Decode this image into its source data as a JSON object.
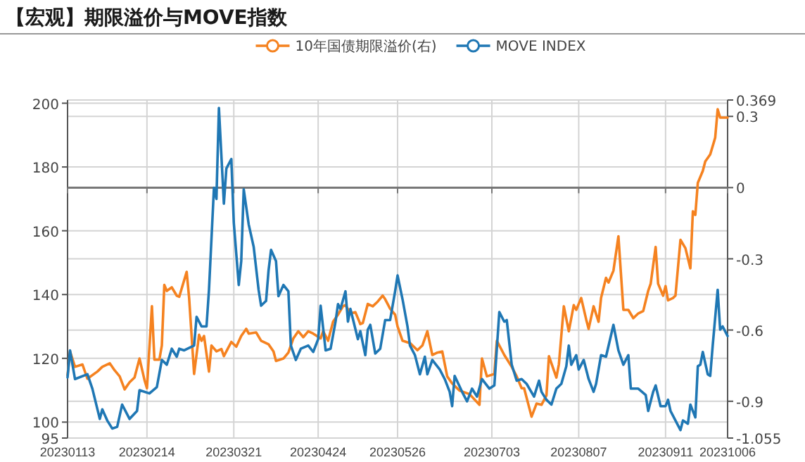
{
  "chart_data": {
    "type": "line",
    "title": "【宏观】期限溢价与MOVE指数",
    "xlim": [
      "2023-01-13",
      "2023-10-06"
    ],
    "xticks": [
      {
        "value": "2023-01-13",
        "label": "20230113"
      },
      {
        "value": "2023-02-14",
        "label": "20230214"
      },
      {
        "value": "2023-03-21",
        "label": "20230321"
      },
      {
        "value": "2023-04-24",
        "label": "20230424"
      },
      {
        "value": "2023-05-26",
        "label": "20230526"
      },
      {
        "value": "2023-07-03",
        "label": "20230703"
      },
      {
        "value": "2023-08-07",
        "label": "20230807"
      },
      {
        "value": "2023-09-11",
        "label": "20230911"
      },
      {
        "value": "2023-10-06",
        "label": "20231006"
      }
    ],
    "ylim": [
      95,
      201
    ],
    "yticks": [
      95,
      100,
      120,
      140,
      160,
      180,
      200
    ],
    "y2lim": [
      -1.055,
      0.369
    ],
    "y2ticks": [
      -1.055,
      -0.9,
      -0.6,
      -0.3,
      0,
      0.3,
      0.369
    ],
    "grid": true,
    "legend": "top",
    "series": [
      {
        "name": "10年国债期限溢价(右)",
        "color": "#f58220",
        "axis": "y2",
        "x": [
          "2023-01-13",
          "2023-01-14",
          "2023-01-16",
          "2023-01-19",
          "2023-01-21",
          "2023-01-25",
          "2023-01-27",
          "2023-01-30",
          "2023-02-01",
          "2023-02-03",
          "2023-02-05",
          "2023-02-07",
          "2023-02-09",
          "2023-02-11",
          "2023-02-13",
          "2023-02-14",
          "2023-02-16",
          "2023-02-17",
          "2023-02-19",
          "2023-02-20",
          "2023-02-21",
          "2023-02-22",
          "2023-02-24",
          "2023-02-26",
          "2023-02-27",
          "2023-03-02",
          "2023-03-03",
          "2023-03-05",
          "2023-03-07",
          "2023-03-08",
          "2023-03-09",
          "2023-03-11",
          "2023-03-12",
          "2023-03-14",
          "2023-03-16",
          "2023-03-17",
          "2023-03-20",
          "2023-03-22",
          "2023-03-24",
          "2023-03-26",
          "2023-03-27",
          "2023-03-30",
          "2023-04-01",
          "2023-04-04",
          "2023-04-06",
          "2023-04-07",
          "2023-04-10",
          "2023-04-12",
          "2023-04-14",
          "2023-04-16",
          "2023-04-18",
          "2023-04-20",
          "2023-04-22",
          "2023-04-25",
          "2023-04-26",
          "2023-04-28",
          "2023-04-30",
          "2023-05-02",
          "2023-05-04",
          "2023-05-05",
          "2023-05-07",
          "2023-05-09",
          "2023-05-11",
          "2023-05-12",
          "2023-05-14",
          "2023-05-16",
          "2023-05-18",
          "2023-05-20",
          "2023-05-21",
          "2023-05-23",
          "2023-05-25",
          "2023-05-26",
          "2023-05-28",
          "2023-05-31",
          "2023-06-03",
          "2023-06-05",
          "2023-06-07",
          "2023-06-09",
          "2023-06-11",
          "2023-06-13",
          "2023-06-15",
          "2023-06-17",
          "2023-06-20",
          "2023-06-24",
          "2023-06-28",
          "2023-06-29",
          "2023-07-01",
          "2023-07-04",
          "2023-07-05",
          "2023-07-08",
          "2023-07-11",
          "2023-07-13",
          "2023-07-15",
          "2023-07-16",
          "2023-07-19",
          "2023-07-21",
          "2023-07-23",
          "2023-07-25",
          "2023-07-26",
          "2023-07-29",
          "2023-07-30",
          "2023-08-01",
          "2023-08-03",
          "2023-08-05",
          "2023-08-06",
          "2023-08-08",
          "2023-08-10",
          "2023-08-11",
          "2023-08-13",
          "2023-08-15",
          "2023-08-16",
          "2023-08-18",
          "2023-08-19",
          "2023-08-21",
          "2023-08-23",
          "2023-08-25",
          "2023-08-27",
          "2023-08-29",
          "2023-08-31",
          "2023-09-02",
          "2023-09-04",
          "2023-09-05",
          "2023-09-07",
          "2023-09-08",
          "2023-09-10",
          "2023-09-11",
          "2023-09-12",
          "2023-09-14",
          "2023-09-15",
          "2023-09-17",
          "2023-09-19",
          "2023-09-21",
          "2023-09-22",
          "2023-09-23",
          "2023-09-24",
          "2023-09-26",
          "2023-09-27",
          "2023-09-29",
          "2023-10-01",
          "2023-10-02",
          "2023-10-03",
          "2023-10-06"
        ],
        "values": [
          -0.79,
          -0.69,
          -0.755,
          -0.745,
          -0.805,
          -0.775,
          -0.755,
          -0.74,
          -0.77,
          -0.795,
          -0.85,
          -0.82,
          -0.8,
          -0.72,
          -0.81,
          -0.845,
          -0.5,
          -0.725,
          -0.725,
          -0.665,
          -0.41,
          -0.435,
          -0.42,
          -0.455,
          -0.46,
          -0.355,
          -0.465,
          -0.785,
          -0.62,
          -0.645,
          -0.625,
          -0.775,
          -0.665,
          -0.69,
          -0.68,
          -0.71,
          -0.65,
          -0.67,
          -0.625,
          -0.595,
          -0.615,
          -0.61,
          -0.645,
          -0.66,
          -0.69,
          -0.73,
          -0.72,
          -0.695,
          -0.635,
          -0.605,
          -0.63,
          -0.605,
          -0.615,
          -0.635,
          -0.605,
          -0.645,
          -0.565,
          -0.535,
          -0.5,
          -0.495,
          -0.53,
          -0.525,
          -0.575,
          -0.57,
          -0.49,
          -0.5,
          -0.48,
          -0.455,
          -0.47,
          -0.51,
          -0.535,
          -0.585,
          -0.645,
          -0.655,
          -0.685,
          -0.665,
          -0.605,
          -0.705,
          -0.695,
          -0.69,
          -0.795,
          -0.825,
          -0.855,
          -0.87,
          -0.915,
          -0.72,
          -0.795,
          -0.785,
          -0.645,
          -0.705,
          -0.755,
          -0.795,
          -0.845,
          -0.845,
          -0.965,
          -0.91,
          -0.915,
          -0.875,
          -0.71,
          -0.8,
          -0.745,
          -0.5,
          -0.605,
          -0.495,
          -0.515,
          -0.465,
          -0.555,
          -0.595,
          -0.5,
          -0.565,
          -0.465,
          -0.38,
          -0.4,
          -0.35,
          -0.205,
          -0.515,
          -0.515,
          -0.55,
          -0.53,
          -0.52,
          -0.435,
          -0.405,
          -0.25,
          -0.405,
          -0.455,
          -0.415,
          -0.475,
          -0.465,
          -0.455,
          -0.22,
          -0.255,
          -0.34,
          -0.1,
          -0.115,
          0.02,
          0.07,
          0.11,
          0.14,
          0.21,
          0.33,
          0.295,
          0.295
        ]
      },
      {
        "name": "MOVE INDEX",
        "color": "#1f77b4",
        "x": [
          "2023-01-13",
          "2023-01-14",
          "2023-01-16",
          "2023-01-21",
          "2023-01-23",
          "2023-01-26",
          "2023-01-27",
          "2023-01-29",
          "2023-01-31",
          "2023-02-02",
          "2023-02-04",
          "2023-02-07",
          "2023-02-10",
          "2023-02-11",
          "2023-02-15",
          "2023-02-18",
          "2023-02-20",
          "2023-02-22",
          "2023-02-24",
          "2023-02-26",
          "2023-02-27",
          "2023-03-01",
          "2023-03-05",
          "2023-03-06",
          "2023-03-08",
          "2023-03-10",
          "2023-03-11",
          "2023-03-13",
          "2023-03-14",
          "2023-03-15",
          "2023-03-17",
          "2023-03-18",
          "2023-03-20",
          "2023-03-21",
          "2023-03-23",
          "2023-03-24",
          "2023-03-25",
          "2023-03-27",
          "2023-03-29",
          "2023-03-31",
          "2023-04-01",
          "2023-04-03",
          "2023-04-04",
          "2023-04-05",
          "2023-04-07",
          "2023-04-08",
          "2023-04-10",
          "2023-04-12",
          "2023-04-13",
          "2023-04-15",
          "2023-04-17",
          "2023-04-20",
          "2023-04-22",
          "2023-04-24",
          "2023-04-25",
          "2023-04-27",
          "2023-04-29",
          "2023-05-01",
          "2023-05-02",
          "2023-05-03",
          "2023-05-05",
          "2023-05-06",
          "2023-05-07",
          "2023-05-10",
          "2023-05-11",
          "2023-05-13",
          "2023-05-14",
          "2023-05-15",
          "2023-05-17",
          "2023-05-19",
          "2023-05-21",
          "2023-05-23",
          "2023-05-25",
          "2023-05-26",
          "2023-05-28",
          "2023-05-30",
          "2023-05-31",
          "2023-06-02",
          "2023-06-04",
          "2023-06-06",
          "2023-06-07",
          "2023-06-09",
          "2023-06-12",
          "2023-06-14",
          "2023-06-16",
          "2023-06-17",
          "2023-06-18",
          "2023-06-21",
          "2023-06-23",
          "2023-06-25",
          "2023-06-27",
          "2023-06-29",
          "2023-07-02",
          "2023-07-04",
          "2023-07-06",
          "2023-07-08",
          "2023-07-09",
          "2023-07-11",
          "2023-07-13",
          "2023-07-15",
          "2023-07-17",
          "2023-07-20",
          "2023-07-22",
          "2023-07-23",
          "2023-07-25",
          "2023-07-27",
          "2023-07-29",
          "2023-07-31",
          "2023-08-02",
          "2023-08-03",
          "2023-08-04",
          "2023-08-06",
          "2023-08-07",
          "2023-08-09",
          "2023-08-11",
          "2023-08-13",
          "2023-08-14",
          "2023-08-16",
          "2023-08-18",
          "2023-08-21",
          "2023-08-23",
          "2023-08-25",
          "2023-08-27",
          "2023-08-28",
          "2023-08-31",
          "2023-09-03",
          "2023-09-04",
          "2023-09-06",
          "2023-09-07",
          "2023-09-09",
          "2023-09-11",
          "2023-09-12",
          "2023-09-13",
          "2023-09-15",
          "2023-09-17",
          "2023-09-18",
          "2023-09-20",
          "2023-09-21",
          "2023-09-23",
          "2023-09-24",
          "2023-09-25",
          "2023-09-26",
          "2023-09-28",
          "2023-09-29",
          "2023-09-30",
          "2023-10-02",
          "2023-10-03",
          "2023-10-04",
          "2023-10-06"
        ],
        "values": [
          114,
          122.5,
          113.5,
          115,
          110.5,
          101,
          104,
          100.5,
          98,
          98.5,
          105.5,
          101,
          103.5,
          110,
          109,
          111,
          119.5,
          118,
          123,
          120.5,
          123,
          122.5,
          124,
          133,
          130,
          130,
          141.5,
          173.5,
          170,
          198.5,
          168.5,
          179.5,
          182.5,
          162.5,
          143,
          150.5,
          173,
          162,
          155,
          141.5,
          136.5,
          138,
          147.5,
          154,
          150.5,
          139.5,
          143,
          141,
          124,
          119.5,
          123,
          124,
          122,
          126,
          136.5,
          122.5,
          123,
          131.5,
          137,
          135.5,
          141,
          131.5,
          135.5,
          126,
          128.5,
          121,
          129,
          130.5,
          121.5,
          123,
          132,
          132,
          141,
          146,
          138.5,
          130,
          124,
          121,
          115,
          120.5,
          115,
          119.5,
          116.5,
          113.5,
          109.5,
          105,
          114.5,
          109.5,
          106.5,
          110.5,
          108,
          113.5,
          110.5,
          111.5,
          134.5,
          131.5,
          132,
          118,
          113,
          113.5,
          112,
          108,
          113,
          109.5,
          107,
          105.5,
          110.5,
          112,
          117.5,
          124,
          118,
          121,
          116.5,
          119.5,
          113.5,
          109.5,
          112,
          121,
          120.5,
          130.5,
          122.5,
          118,
          121,
          110.5,
          110.5,
          108.5,
          103.5,
          109.5,
          111.5,
          105,
          105,
          107,
          103.5,
          100.5,
          97.5,
          100.5,
          99.5,
          105.5,
          101.5,
          117.5,
          118,
          122,
          115,
          114.5,
          124,
          141.5,
          129,
          130,
          127
        ]
      }
    ]
  }
}
